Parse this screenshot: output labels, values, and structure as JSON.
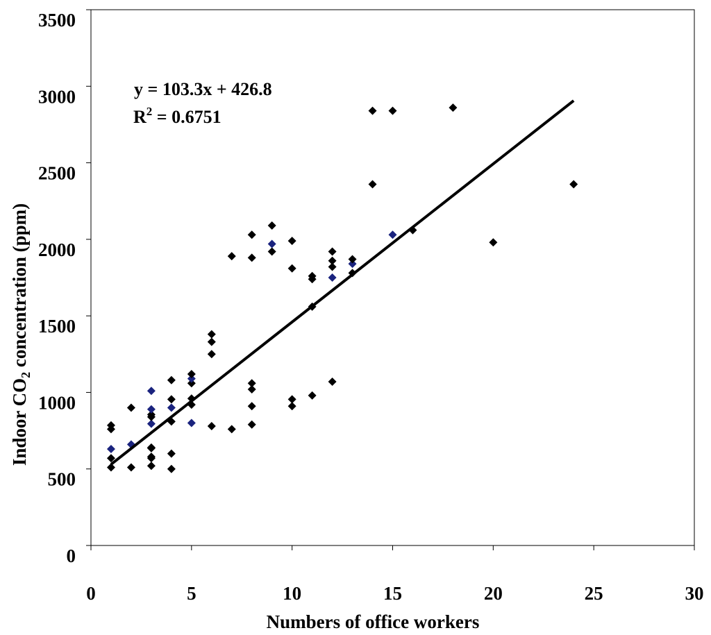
{
  "chart_data": {
    "type": "scatter",
    "xlabel": "Numbers of office workers",
    "ylabel_prefix": "Indoor CO",
    "ylabel_sub": "2",
    "ylabel_suffix": " concentration (ppm)",
    "xlim": [
      0,
      30
    ],
    "ylim": [
      0,
      3500
    ],
    "xticks": [
      0,
      5,
      10,
      15,
      20,
      25,
      30
    ],
    "yticks": [
      0,
      500,
      1000,
      1500,
      2000,
      2500,
      3000,
      3500
    ],
    "grid": false,
    "trendline": {
      "slope": 103.3,
      "intercept": 426.8,
      "x_range": [
        1,
        24
      ],
      "equation": "y = 103.3x + 426.8",
      "r2_prefix": "R",
      "r2_sup": "2",
      "r2_suffix": " = 0.6751"
    },
    "marker_colors": {
      "black": "#000000",
      "blue": "#1a237e"
    },
    "points": [
      {
        "x": 1,
        "y": 510
      },
      {
        "x": 1,
        "y": 570
      },
      {
        "x": 1,
        "y": 630,
        "c": "blue"
      },
      {
        "x": 1,
        "y": 760
      },
      {
        "x": 1,
        "y": 785
      },
      {
        "x": 2,
        "y": 510
      },
      {
        "x": 2,
        "y": 660,
        "c": "blue"
      },
      {
        "x": 2,
        "y": 900
      },
      {
        "x": 3,
        "y": 520
      },
      {
        "x": 3,
        "y": 570
      },
      {
        "x": 3,
        "y": 580
      },
      {
        "x": 3,
        "y": 635
      },
      {
        "x": 3,
        "y": 640
      },
      {
        "x": 3,
        "y": 795,
        "c": "blue"
      },
      {
        "x": 3,
        "y": 840
      },
      {
        "x": 3,
        "y": 855
      },
      {
        "x": 3,
        "y": 890,
        "c": "blue"
      },
      {
        "x": 3,
        "y": 1010,
        "c": "blue"
      },
      {
        "x": 4,
        "y": 500
      },
      {
        "x": 4,
        "y": 600
      },
      {
        "x": 4,
        "y": 810
      },
      {
        "x": 4,
        "y": 900,
        "c": "blue"
      },
      {
        "x": 4,
        "y": 955
      },
      {
        "x": 4,
        "y": 1080
      },
      {
        "x": 5,
        "y": 800,
        "c": "blue"
      },
      {
        "x": 5,
        "y": 920
      },
      {
        "x": 5,
        "y": 960
      },
      {
        "x": 5,
        "y": 1060
      },
      {
        "x": 5,
        "y": 1090,
        "c": "blue"
      },
      {
        "x": 5,
        "y": 1120
      },
      {
        "x": 6,
        "y": 780
      },
      {
        "x": 6,
        "y": 1250
      },
      {
        "x": 6,
        "y": 1330
      },
      {
        "x": 6,
        "y": 1380
      },
      {
        "x": 7,
        "y": 760
      },
      {
        "x": 7,
        "y": 1890
      },
      {
        "x": 8,
        "y": 790
      },
      {
        "x": 8,
        "y": 910
      },
      {
        "x": 8,
        "y": 1020
      },
      {
        "x": 8,
        "y": 1060
      },
      {
        "x": 8,
        "y": 1880
      },
      {
        "x": 8,
        "y": 2030
      },
      {
        "x": 9,
        "y": 1920
      },
      {
        "x": 9,
        "y": 1970,
        "c": "blue"
      },
      {
        "x": 9,
        "y": 2090
      },
      {
        "x": 10,
        "y": 910
      },
      {
        "x": 10,
        "y": 955
      },
      {
        "x": 10,
        "y": 1810
      },
      {
        "x": 10,
        "y": 1990
      },
      {
        "x": 11,
        "y": 980
      },
      {
        "x": 11,
        "y": 1560
      },
      {
        "x": 11,
        "y": 1740
      },
      {
        "x": 11,
        "y": 1760
      },
      {
        "x": 12,
        "y": 1070
      },
      {
        "x": 12,
        "y": 1750,
        "c": "blue"
      },
      {
        "x": 12,
        "y": 1820
      },
      {
        "x": 12,
        "y": 1860
      },
      {
        "x": 12,
        "y": 1920
      },
      {
        "x": 13,
        "y": 1780
      },
      {
        "x": 13,
        "y": 1840,
        "c": "blue"
      },
      {
        "x": 13,
        "y": 1870
      },
      {
        "x": 14,
        "y": 2360
      },
      {
        "x": 14,
        "y": 2840
      },
      {
        "x": 15,
        "y": 2030,
        "c": "blue"
      },
      {
        "x": 15,
        "y": 2840
      },
      {
        "x": 16,
        "y": 2060
      },
      {
        "x": 18,
        "y": 2860
      },
      {
        "x": 20,
        "y": 1980
      },
      {
        "x": 24,
        "y": 2360
      }
    ]
  }
}
